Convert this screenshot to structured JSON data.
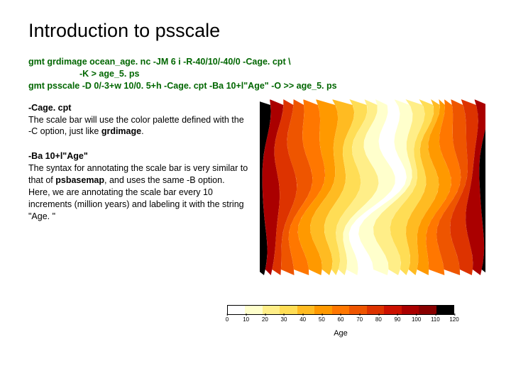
{
  "title": "Introduction to psscale",
  "code": {
    "line1": "gmt grdimage ocean_age. nc -JM 6 i -R-40/10/-40/0 -Cage. cpt \\",
    "line2": "-K > age_5. ps",
    "line3": "gmt psscale -D 0/-3+w 10/0. 5+h -Cage. cpt -Ba 10+l\"Age\" -O >> age_5. ps"
  },
  "para1": {
    "flag": "-Cage. cpt",
    "text_a": "The scale bar will use the color palette defined with the -C option, just like ",
    "bold_a": "grdimage",
    "text_b": "."
  },
  "para2": {
    "flag": "-Ba 10+l\"Age\"",
    "text_a": "The syntax for annotating the scale bar is very similar to that of ",
    "bold_a": "psbasemap",
    "text_b": ", and uses the same -B option. Here, we are annotating the scale bar every 10 increments (million years) and labeling it with the string \"Age. \""
  },
  "map": {
    "bands": [
      "#000000",
      "#aa0000",
      "#dd3300",
      "#ee5500",
      "#ff7700",
      "#ff9900",
      "#ffbb22",
      "#ffdd55",
      "#ffee88",
      "#ffffcc",
      "#ffffff",
      "#ffffcc",
      "#ffee88",
      "#ffdd55",
      "#ffbb22",
      "#ff9900",
      "#ff7700",
      "#ee5500",
      "#dd3300",
      "#aa0000",
      "#000000"
    ]
  },
  "colorbar": {
    "colors": [
      "#ffffff",
      "#ffffcc",
      "#ffee88",
      "#ffdd55",
      "#ffbb22",
      "#ff9900",
      "#ff7700",
      "#ee5500",
      "#dd3300",
      "#cc1100",
      "#aa0000",
      "#880000",
      "#000000"
    ],
    "ticks": [
      "0",
      "10",
      "20",
      "30",
      "40",
      "50",
      "60",
      "70",
      "80",
      "90",
      "100",
      "110",
      "120"
    ],
    "label": "Age"
  }
}
